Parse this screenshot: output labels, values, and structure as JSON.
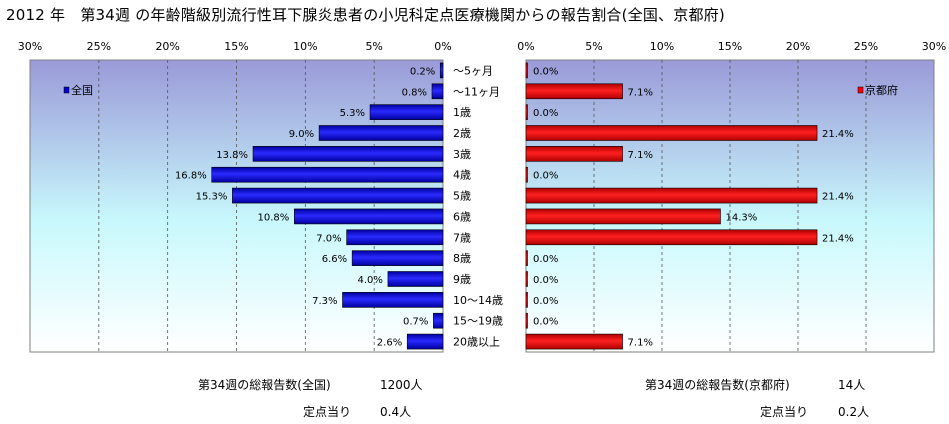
{
  "title": "2012 年　第34週 の年齢階級別流行性耳下腺炎患者の小児科定点医療機関からの報告割合(全国、京都府)",
  "chart_data": [
    {
      "type": "bar",
      "orientation": "horizontal",
      "direction": "right-to-left",
      "categories": [
        "～5ヶ月",
        "～11ヶ月",
        "1歳",
        "2歳",
        "3歳",
        "4歳",
        "5歳",
        "6歳",
        "7歳",
        "8歳",
        "9歳",
        "10～14歳",
        "15～19歳",
        "20歳以上"
      ],
      "series": [
        {
          "name": "全国",
          "color": "#0000cc",
          "values": [
            0.2,
            0.8,
            5.3,
            9.0,
            13.8,
            16.8,
            15.3,
            10.8,
            7.0,
            6.6,
            4.0,
            7.3,
            0.7,
            2.6
          ],
          "labels": [
            "0.2%",
            "0.8%",
            "5.3%",
            "9.0%",
            "13.8%",
            "16.8%",
            "15.3%",
            "10.8%",
            "7.0%",
            "6.6%",
            "4.0%",
            "7.3%",
            "0.7%",
            "2.6%"
          ]
        }
      ],
      "xlim": [
        0,
        30
      ],
      "ticks": [
        "0%",
        "5%",
        "10%",
        "15%",
        "20%",
        "25%",
        "30%"
      ],
      "legend": "top-left",
      "grid": true
    },
    {
      "type": "bar",
      "orientation": "horizontal",
      "direction": "left-to-right",
      "categories": [
        "～5ヶ月",
        "～11ヶ月",
        "1歳",
        "2歳",
        "3歳",
        "4歳",
        "5歳",
        "6歳",
        "7歳",
        "8歳",
        "9歳",
        "10～14歳",
        "15～19歳",
        "20歳以上"
      ],
      "series": [
        {
          "name": "京都府",
          "color": "#ff0000",
          "values": [
            0.0,
            7.1,
            0.0,
            21.4,
            7.1,
            0.0,
            21.4,
            14.3,
            21.4,
            0.0,
            0.0,
            0.0,
            0.0,
            7.1
          ],
          "labels": [
            "0.0%",
            "7.1%",
            "0.0%",
            "21.4%",
            "7.1%",
            "0.0%",
            "21.4%",
            "14.3%",
            "21.4%",
            "0.0%",
            "0.0%",
            "0.0%",
            "0.0%",
            "7.1%"
          ]
        }
      ],
      "xlim": [
        0,
        30
      ],
      "ticks": [
        "0%",
        "5%",
        "10%",
        "15%",
        "20%",
        "25%",
        "30%"
      ],
      "legend": "top-right",
      "grid": true
    }
  ],
  "footer": {
    "national_label": "第34週の総報告数(全国)",
    "national_value": "1200人",
    "national_per_label": "定点当り",
    "national_per_value": "0.4人",
    "kyoto_label": "第34週の総報告数(京都府)",
    "kyoto_value": "14人",
    "kyoto_per_label": "定点当り",
    "kyoto_per_value": "0.2人"
  }
}
